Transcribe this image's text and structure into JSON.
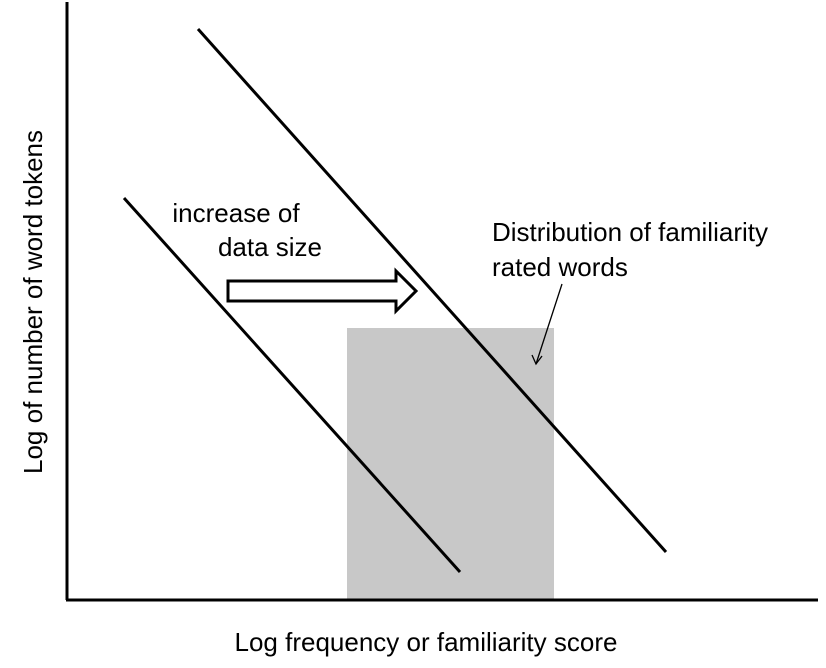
{
  "diagram": {
    "axes": {
      "x_label": "Log frequency or familiarity score",
      "y_label": "Log of number of word tokens"
    },
    "annotations": {
      "increase_line1": "increase of",
      "increase_line2": "data size",
      "distribution_line1": "Distribution of familiarity",
      "distribution_line2": "rated words"
    },
    "colors": {
      "ink": "#000000",
      "shaded_region": "#c8c8c8",
      "background": "#ffffff"
    }
  }
}
